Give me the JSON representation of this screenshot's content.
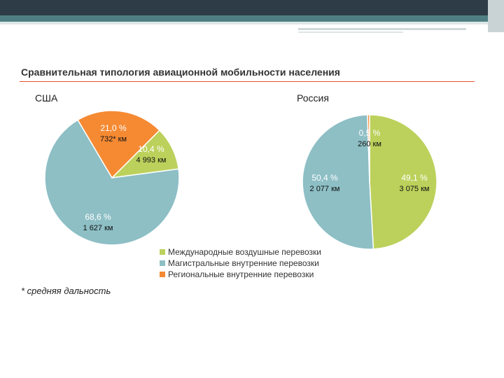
{
  "title": "Сравнительная типология авиационной мобильности населения",
  "footnote": "* средняя дальность",
  "colors": {
    "international": "#bcd15b",
    "trunk": "#8dbfc5",
    "regional": "#f58a33"
  },
  "legend": [
    {
      "label": "Международные воздушные перевозки",
      "color": "#bcd15b"
    },
    {
      "label": "Магистральные внутренние перевозки",
      "color": "#8dbfc5"
    },
    {
      "label": "Региональные внутренние перевозки",
      "color": "#f58a33"
    }
  ],
  "chart_data": [
    {
      "type": "pie",
      "title": "США",
      "slices": [
        {
          "label": "Международные воздушные перевозки",
          "percent": 10.4,
          "percent_text": "10,4 %",
          "distance_text": "4 993 км",
          "color": "#bcd15b"
        },
        {
          "label": "Магистральные внутренние перевозки",
          "percent": 68.6,
          "percent_text": "68,6 %",
          "distance_text": "1 627 км",
          "color": "#8dbfc5"
        },
        {
          "label": "Региональные внутренние перевозки",
          "percent": 21.0,
          "percent_text": "21,0 %",
          "distance_text": "732* км",
          "color": "#f58a33"
        }
      ]
    },
    {
      "type": "pie",
      "title": "Россия",
      "slices": [
        {
          "label": "Международные воздушные перевозки",
          "percent": 49.1,
          "percent_text": "49,1 %",
          "distance_text": "3 075 км",
          "color": "#bcd15b"
        },
        {
          "label": "Магистральные внутренние перевозки",
          "percent": 50.4,
          "percent_text": "50,4 %",
          "distance_text": "2 077 км",
          "color": "#8dbfc5"
        },
        {
          "label": "Региональные внутренние перевозки",
          "percent": 0.5,
          "percent_text": "0,5 %",
          "distance_text": "260 км",
          "color": "#f58a33"
        }
      ]
    }
  ]
}
